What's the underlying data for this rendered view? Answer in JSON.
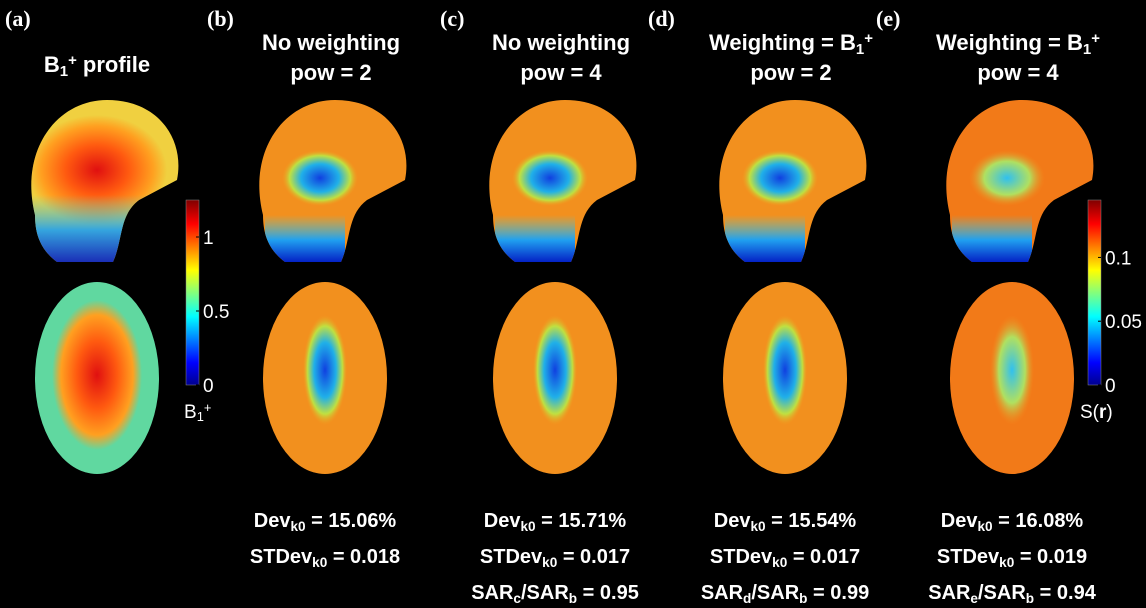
{
  "panels": [
    {
      "label": "(a)",
      "title": [
        [
          {
            "text": "B"
          },
          {
            "text": "1",
            "style": "sub"
          },
          {
            "text": "+",
            "style": "sup"
          },
          {
            "text": " profile"
          }
        ]
      ],
      "stats": []
    },
    {
      "label": "(b)",
      "title": [
        [
          {
            "text": "No weighting"
          }
        ],
        [
          {
            "text": "pow = 2"
          }
        ]
      ],
      "stats": [
        [
          {
            "text": "Dev"
          },
          {
            "text": "k0",
            "style": "sub"
          },
          {
            "text": " = 15.06%"
          }
        ],
        [
          {
            "text": "STDev"
          },
          {
            "text": "k0",
            "style": "sub"
          },
          {
            "text": " = 0.018"
          }
        ]
      ]
    },
    {
      "label": "(c)",
      "title": [
        [
          {
            "text": "No weighting"
          }
        ],
        [
          {
            "text": "pow = 4"
          }
        ]
      ],
      "stats": [
        [
          {
            "text": "Dev"
          },
          {
            "text": "k0",
            "style": "sub"
          },
          {
            "text": " = 15.71%"
          }
        ],
        [
          {
            "text": "STDev"
          },
          {
            "text": "k0",
            "style": "sub"
          },
          {
            "text": " = 0.017"
          }
        ],
        [
          {
            "text": "SAR"
          },
          {
            "text": "c",
            "style": "sub"
          },
          {
            "text": "/SAR"
          },
          {
            "text": "b",
            "style": "sub"
          },
          {
            "text": " = 0.95"
          }
        ]
      ]
    },
    {
      "label": "(d)",
      "title": [
        [
          {
            "text": "Weighting = B"
          },
          {
            "text": "1",
            "style": "sub"
          },
          {
            "text": "+",
            "style": "sup"
          }
        ],
        [
          {
            "text": "pow = 2"
          }
        ]
      ],
      "stats": [
        [
          {
            "text": "Dev"
          },
          {
            "text": "k0",
            "style": "sub"
          },
          {
            "text": " = 15.54%"
          }
        ],
        [
          {
            "text": "STDev"
          },
          {
            "text": "k0",
            "style": "sub"
          },
          {
            "text": " = 0.017"
          }
        ],
        [
          {
            "text": "SAR"
          },
          {
            "text": "d",
            "style": "sub"
          },
          {
            "text": "/SAR"
          },
          {
            "text": "b",
            "style": "sub"
          },
          {
            "text": " = 0.99"
          }
        ]
      ]
    },
    {
      "label": "(e)",
      "title": [
        [
          {
            "text": "Weighting = B"
          },
          {
            "text": "1",
            "style": "sub"
          },
          {
            "text": "+",
            "style": "sup"
          }
        ],
        [
          {
            "text": "pow = 4"
          }
        ]
      ],
      "stats": [
        [
          {
            "text": "Dev"
          },
          {
            "text": "k0",
            "style": "sub"
          },
          {
            "text": " = 16.08%"
          }
        ],
        [
          {
            "text": "STDev"
          },
          {
            "text": "k0",
            "style": "sub"
          },
          {
            "text": " = 0.019"
          }
        ],
        [
          {
            "text": "SAR"
          },
          {
            "text": "e",
            "style": "sub"
          },
          {
            "text": "/SAR"
          },
          {
            "text": "b",
            "style": "sub"
          },
          {
            "text": " = 0.94"
          }
        ]
      ]
    }
  ],
  "colorbars": [
    {
      "lim": [
        0,
        1.25
      ],
      "ticks": [
        0,
        0.5,
        1
      ],
      "label": [
        {
          "text": "B"
        },
        {
          "text": "1",
          "style": "sub"
        },
        {
          "text": "+",
          "style": "sup"
        }
      ]
    },
    {
      "lim": [
        0,
        0.145
      ],
      "ticks": [
        0,
        0.05,
        0.1
      ],
      "label": [
        {
          "text": "S("
        },
        {
          "text": "r",
          "style": "bold"
        },
        {
          "text": ")"
        }
      ]
    }
  ]
}
